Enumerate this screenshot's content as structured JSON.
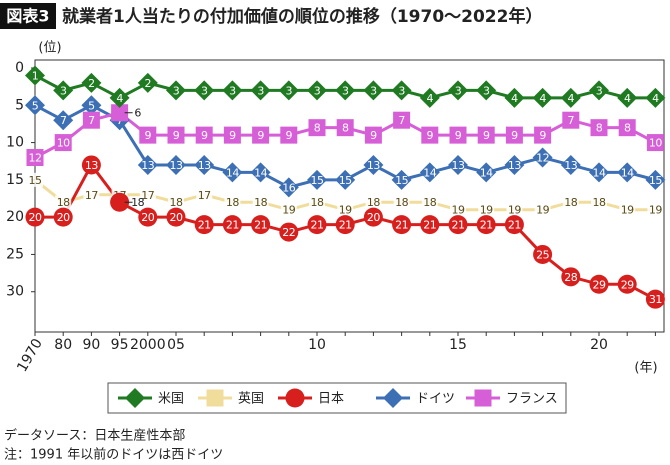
{
  "chart_data": {
    "type": "line",
    "badge": "図表3",
    "title": "就業者1人当たりの付加価値の順位の推移（1970～2022年）",
    "y_label": "(位)",
    "x_label": "(年)",
    "categories": [
      "1970",
      "80",
      "90",
      "95",
      "2000",
      "05",
      null,
      null,
      null,
      null,
      "10",
      null,
      null,
      null,
      null,
      "15",
      null,
      null,
      null,
      null,
      "20",
      null,
      null
    ],
    "ylim": [
      0,
      35.4
    ],
    "y_reversed": true,
    "yticks": [
      0,
      5,
      10,
      15,
      20,
      25,
      30
    ],
    "series": [
      {
        "name": "米国",
        "color": "#1f7a22",
        "marker": "diamond",
        "values": [
          1,
          3,
          2,
          4,
          2,
          3,
          3,
          3,
          3,
          3,
          3,
          3,
          3,
          3,
          4,
          3,
          3,
          4,
          4,
          4,
          3,
          4,
          4
        ]
      },
      {
        "name": "英国",
        "color": "#f0dd9c",
        "marker": "none",
        "values": [
          15,
          18,
          17,
          17,
          17,
          18,
          17,
          18,
          18,
          19,
          18,
          19,
          18,
          18,
          18,
          19,
          19,
          19,
          19,
          18,
          18,
          19,
          19
        ]
      },
      {
        "name": "日本",
        "color": "#d7201e",
        "marker": "circle",
        "values": [
          20,
          20,
          13,
          18,
          20,
          20,
          21,
          21,
          21,
          22,
          21,
          21,
          20,
          21,
          21,
          21,
          21,
          21,
          25,
          28,
          29,
          29,
          31
        ]
      },
      {
        "name": "ドイツ",
        "color": "#3d6fb5",
        "marker": "diamond",
        "values": [
          5,
          7,
          5,
          7,
          13,
          13,
          13,
          14,
          14,
          16,
          15,
          15,
          13,
          15,
          14,
          13,
          14,
          13,
          12,
          13,
          14,
          14,
          15
        ]
      },
      {
        "name": "フランス",
        "color": "#d65ed6",
        "marker": "square",
        "values": [
          12,
          10,
          7,
          6,
          9,
          9,
          9,
          9,
          9,
          9,
          8,
          8,
          9,
          7,
          9,
          9,
          9,
          9,
          9,
          7,
          8,
          8,
          10
        ]
      }
    ],
    "source": "データソース：日本生産性本部",
    "note": "注：1991 年以前のドイツは西ドイツ"
  }
}
